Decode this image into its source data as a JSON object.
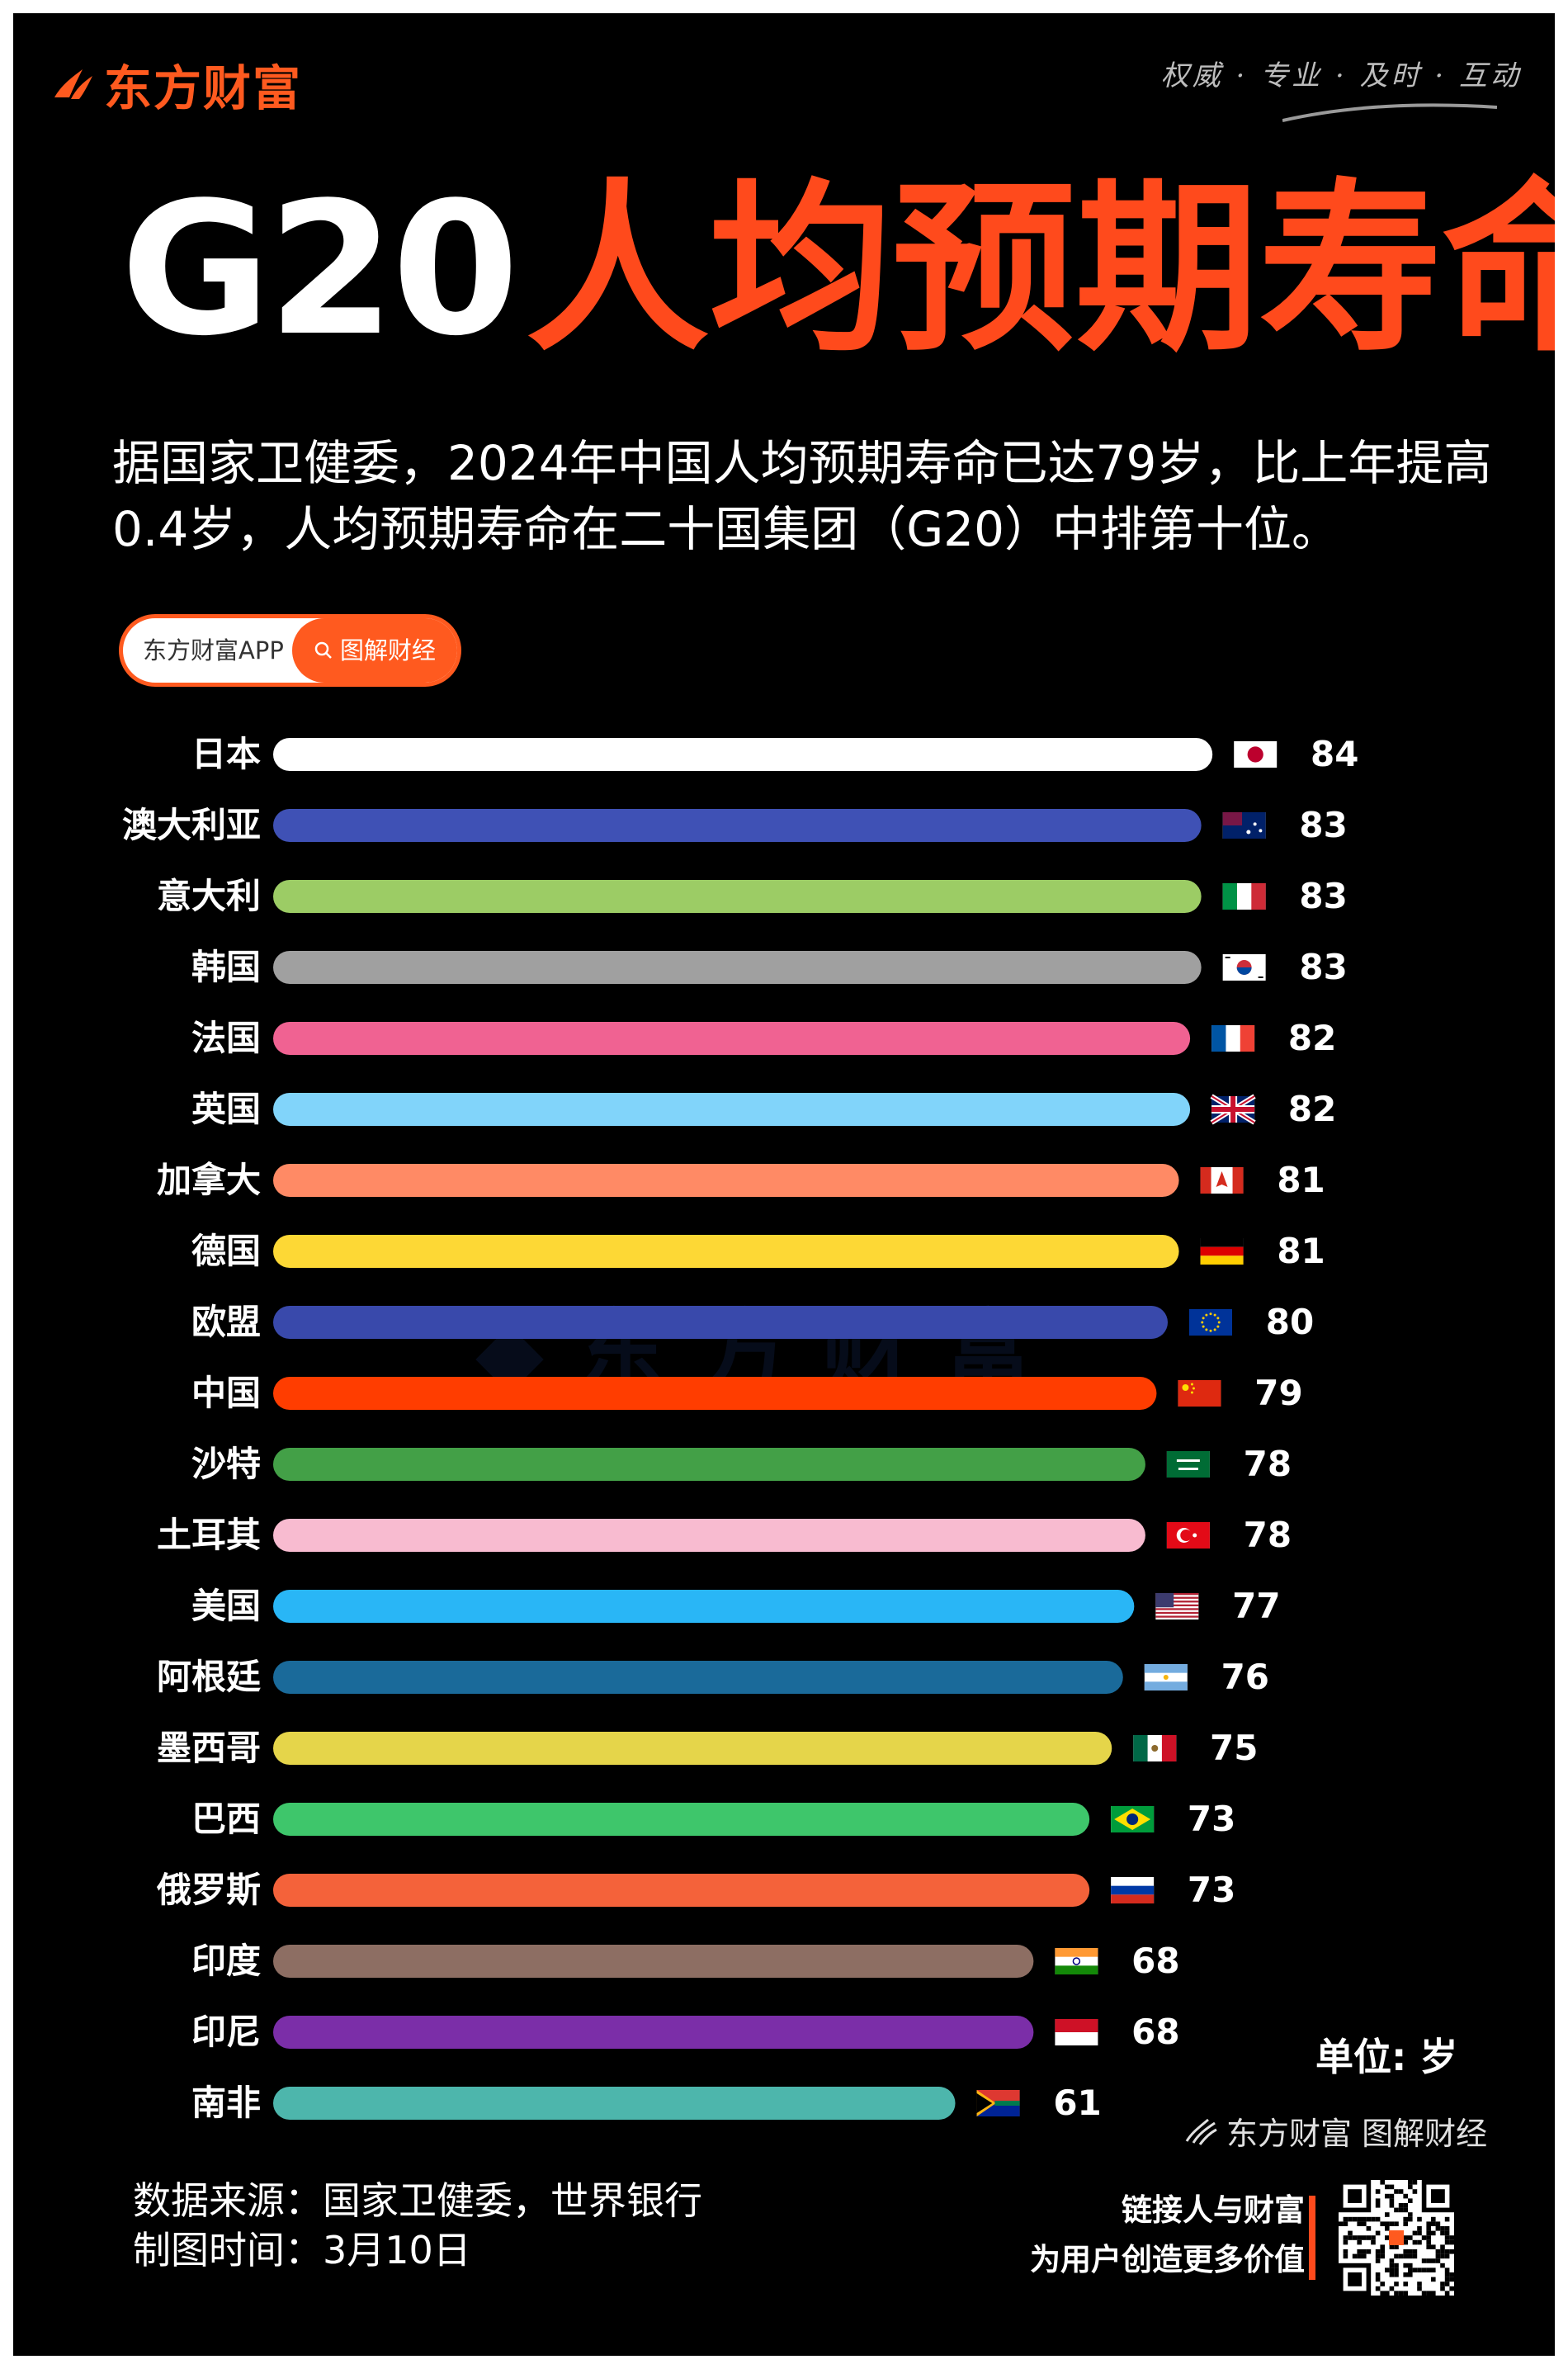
{
  "brand": {
    "name": "东方财富",
    "slogan": "权威 · 专业 · 及时 · 互动",
    "color": "#ff5a1f"
  },
  "title": {
    "g20": "G20",
    "cn": "人均预期寿命"
  },
  "subtitle": "据国家卫健委，2024年中国人均预期寿命已达79岁，比上年提高0.4岁，人均预期寿命在二十国集团（G20）中排第十位。",
  "pill": {
    "left": "东方财富APP",
    "right": "图解财经"
  },
  "chart_data": {
    "type": "bar",
    "orientation": "horizontal",
    "unit_label": "单位: 岁",
    "categories": [
      "日本",
      "澳大利亚",
      "意大利",
      "韩国",
      "法国",
      "英国",
      "加拿大",
      "德国",
      "欧盟",
      "中国",
      "沙特",
      "土耳其",
      "美国",
      "阿根廷",
      "墨西哥",
      "巴西",
      "俄罗斯",
      "印度",
      "印尼",
      "南非"
    ],
    "values": [
      84,
      83,
      83,
      83,
      82,
      82,
      81,
      81,
      80,
      79,
      78,
      78,
      77,
      76,
      75,
      73,
      73,
      68,
      68,
      61
    ],
    "colors": [
      "#ffffff",
      "#3f51b5",
      "#9ccc65",
      "#a0a0a0",
      "#f06292",
      "#81d4fa",
      "#ff8a65",
      "#fdd835",
      "#3949ab",
      "#ff3d00",
      "#43a047",
      "#f8bbd0",
      "#29b6f6",
      "#1a6a9a",
      "#e5d54a",
      "#3ec66b",
      "#f4623a",
      "#8d6e63",
      "#7b2ea8",
      "#4db6ac"
    ],
    "flags": [
      "japan-flag",
      "australia-flag",
      "italy-flag",
      "korea-flag",
      "france-flag",
      "uk-flag",
      "canada-flag",
      "germany-flag",
      "eu-flag",
      "china-flag",
      "saudi-flag",
      "turkey-flag",
      "usa-flag",
      "argentina-flag",
      "mexico-flag",
      "brazil-flag",
      "russia-flag",
      "india-flag",
      "indonesia-flag",
      "south-africa-flag"
    ]
  },
  "watermark_brand": "东方财富 图解财经",
  "footer": {
    "source": "数据来源：国家卫健委，世界银行",
    "date": "制图时间：3月10日",
    "tagline1": "链接人与财富",
    "tagline2": "为用户创造更多价值"
  }
}
